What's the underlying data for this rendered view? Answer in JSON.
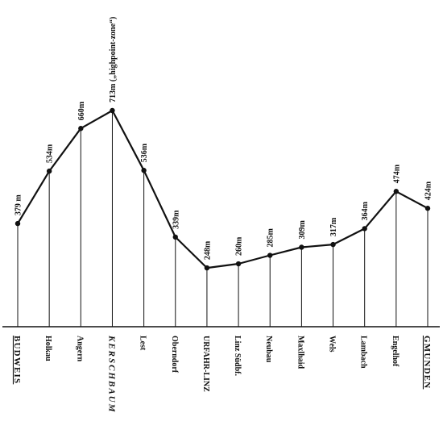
{
  "chart_data": {
    "type": "line",
    "title": "",
    "xlabel": "",
    "ylabel": "",
    "ylim": [
      0,
      800
    ],
    "grid": false,
    "legend": "none",
    "line_color": "#111111",
    "categories": [
      "BUDWEIS",
      "Holkau",
      "Angern",
      "KERSCHBAUM",
      "Lest",
      "Oberndorf",
      "URFAHR-LINZ",
      "Linz Südbf.",
      "Neubau",
      "Maxlhaid",
      "Wels",
      "Lambach",
      "Engelhof",
      "GMUNDEN"
    ],
    "values": [
      379,
      534,
      660,
      713,
      536,
      339,
      248,
      260,
      285,
      309,
      317,
      364,
      474,
      424
    ],
    "value_labels": [
      "379 m",
      "534m",
      "660m",
      "713m („highpoint-zone“)",
      "536m",
      "339m",
      "248m",
      "260m",
      "285m",
      "309m",
      "317m",
      "364m",
      "474m",
      "424m"
    ],
    "station_styles": [
      "major",
      "normal",
      "normal",
      "italic",
      "normal",
      "normal",
      "normal",
      "normal",
      "normal",
      "normal",
      "normal",
      "normal",
      "normal",
      "major"
    ],
    "underlined_stations": [
      "BUDWEIS",
      "GMUNDEN"
    ]
  }
}
